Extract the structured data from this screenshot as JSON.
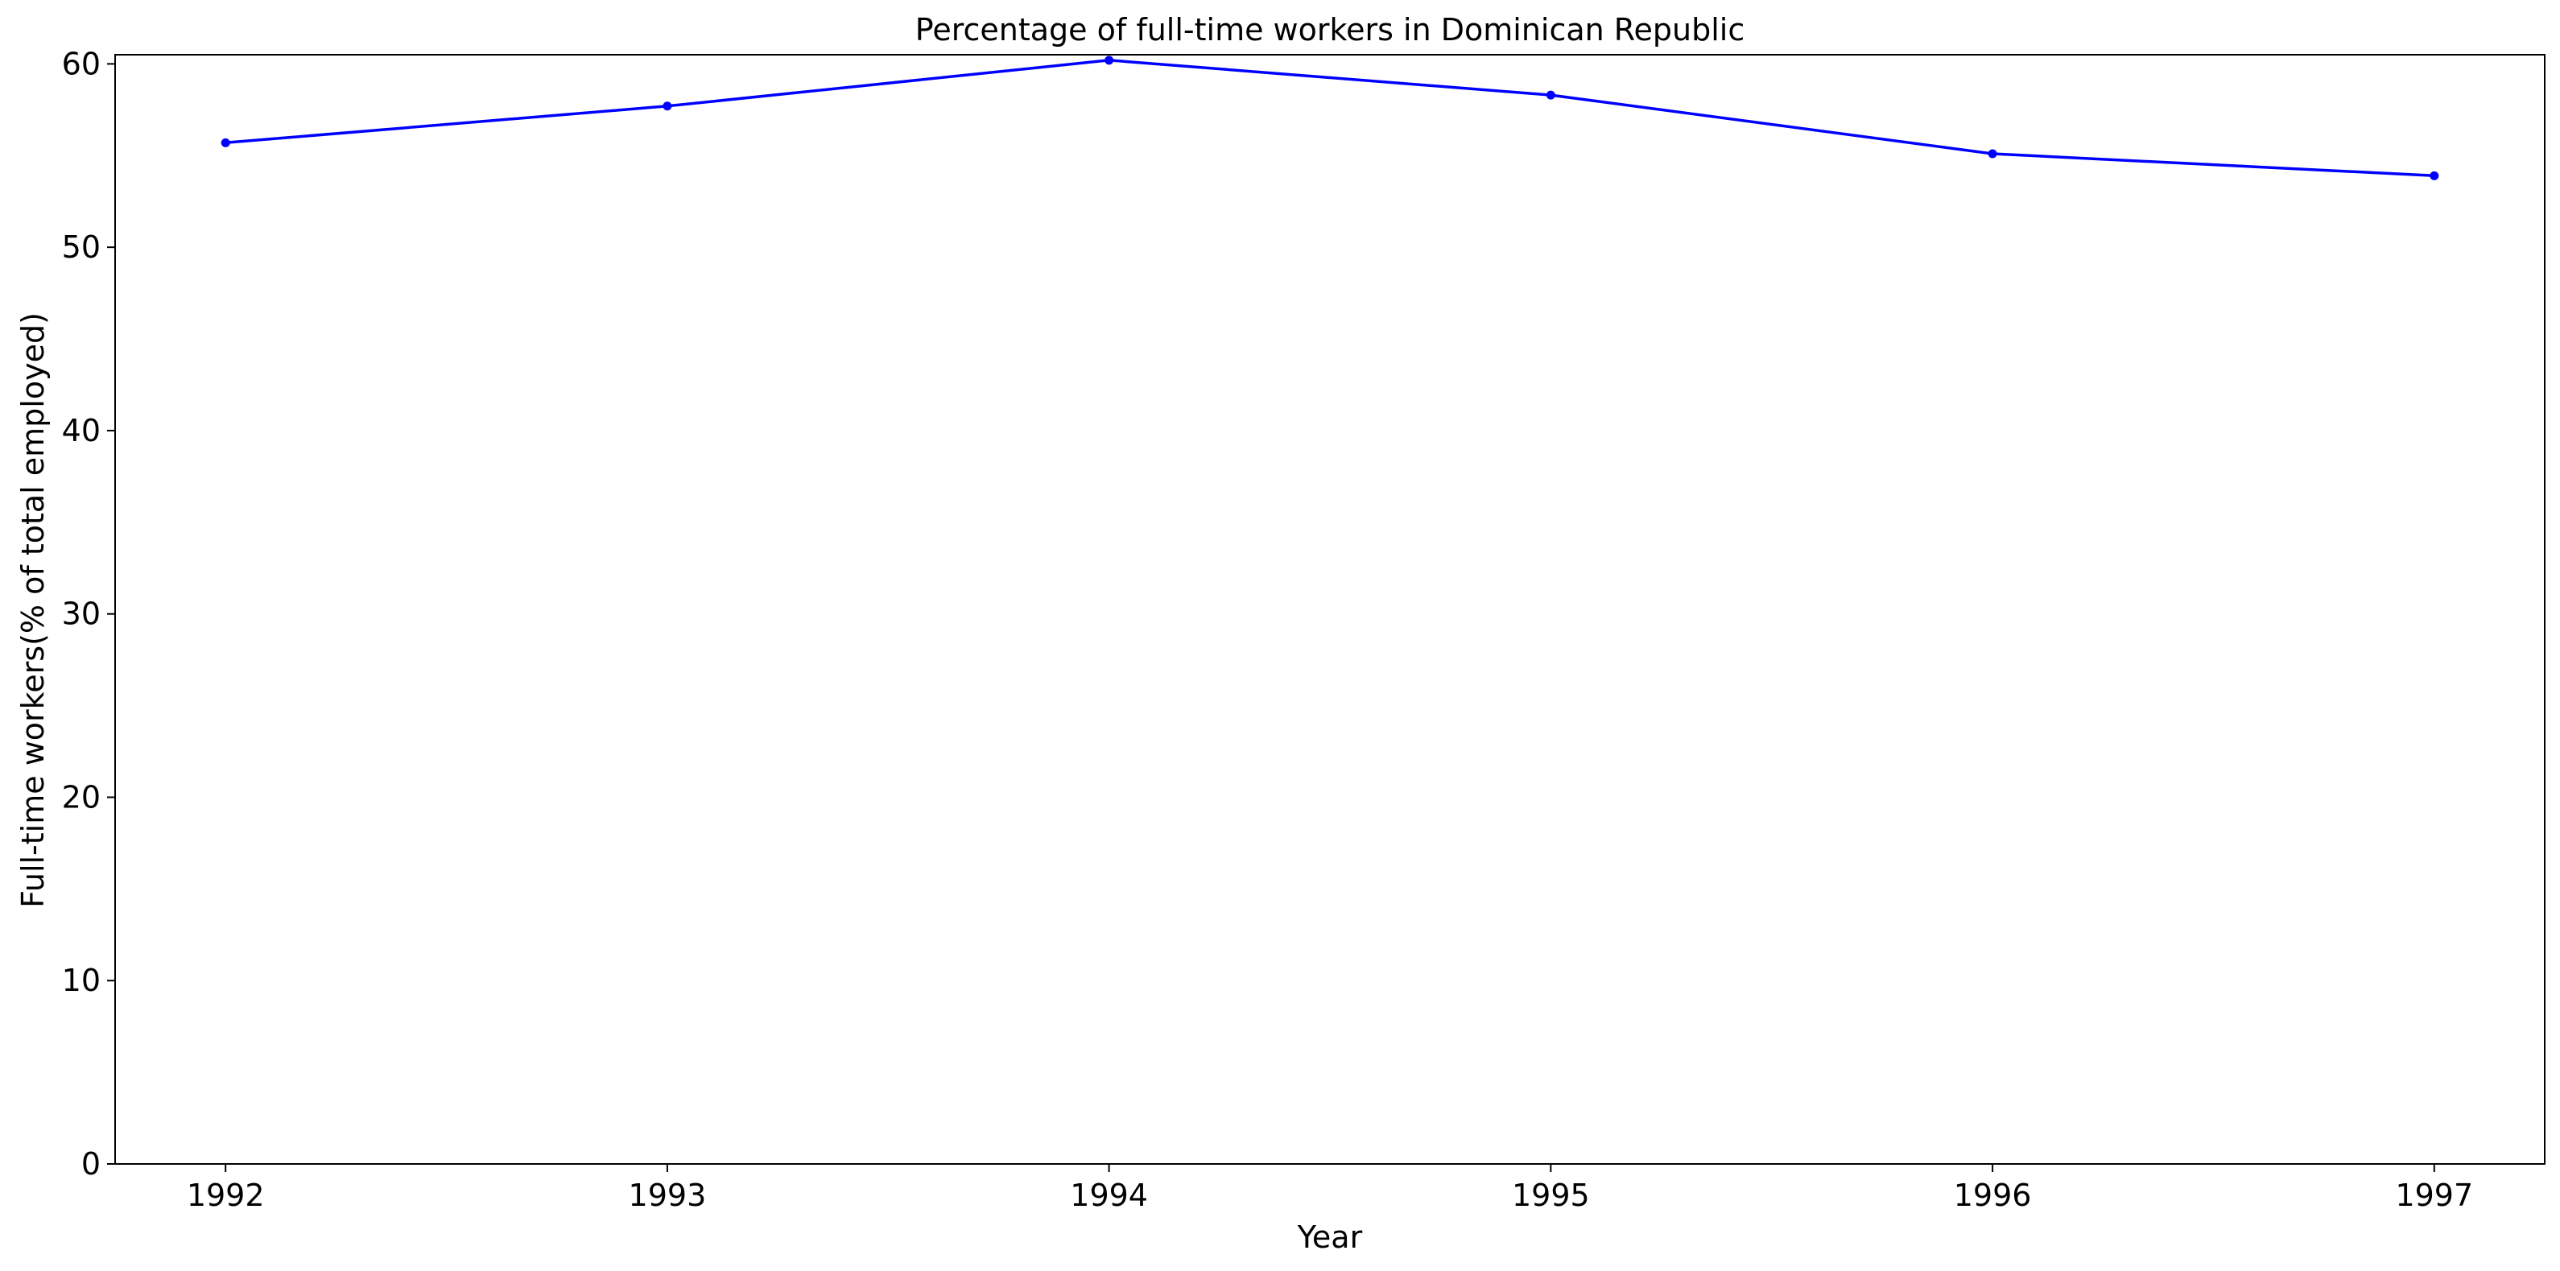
{
  "chart_data": {
    "type": "line",
    "title": "Percentage of full-time workers in Dominican Republic",
    "xlabel": "Year",
    "ylabel": "Full-time workers(% of total employed)",
    "x": [
      "1992",
      "1993",
      "1994",
      "1995",
      "1996",
      "1997"
    ],
    "series": [
      {
        "values": [
          55.7,
          57.7,
          60.2,
          58.3,
          55.1,
          53.9
        ],
        "color": "#0000ff",
        "marker": "circle"
      }
    ],
    "x_range": [
      1991.75,
      1997.25
    ],
    "ylim": [
      0,
      60.5
    ],
    "yticks": [
      0,
      10,
      20,
      30,
      40,
      50,
      60
    ],
    "grid": false,
    "legend": "none"
  }
}
